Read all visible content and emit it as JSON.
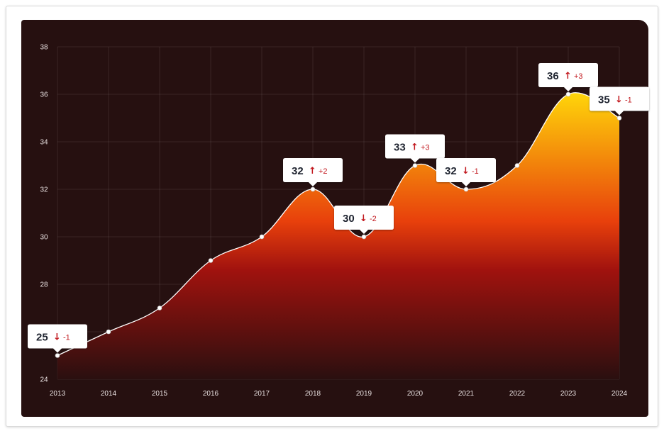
{
  "chart_data": {
    "type": "area",
    "x": [
      "2013",
      "2014",
      "2015",
      "2016",
      "2017",
      "2018",
      "2019",
      "2020",
      "2021",
      "2022",
      "2023",
      "2024"
    ],
    "values": [
      25,
      26,
      27,
      29,
      30,
      32,
      30,
      33,
      32,
      33,
      36,
      35
    ],
    "y_ticks": [
      "24",
      "",
      "28",
      "30",
      "32",
      "34",
      "36",
      "38"
    ],
    "ylim": [
      24,
      38
    ],
    "grid": true,
    "annotations": [
      {
        "index": 0,
        "value": "25",
        "direction": "down",
        "delta": "-1"
      },
      {
        "index": 5,
        "value": "32",
        "direction": "up",
        "delta": "+2"
      },
      {
        "index": 6,
        "value": "30",
        "direction": "down",
        "delta": "-2"
      },
      {
        "index": 7,
        "value": "33",
        "direction": "up",
        "delta": "+3"
      },
      {
        "index": 8,
        "value": "32",
        "direction": "down",
        "delta": "-1"
      },
      {
        "index": 10,
        "value": "36",
        "direction": "up",
        "delta": "+3"
      },
      {
        "index": 11,
        "value": "35",
        "direction": "down",
        "delta": "-1"
      }
    ],
    "colors": {
      "background": "#261010",
      "gradient_top": "#ffd60a",
      "gradient_mid": "#e8400c",
      "gradient_low": "#a0120e",
      "gradient_bottom": "#2a0f0f",
      "line": "#ffffff",
      "up": "#c2181e",
      "down": "#c2181e"
    }
  }
}
